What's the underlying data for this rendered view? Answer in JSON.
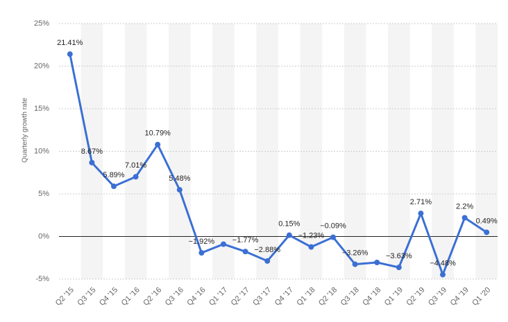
{
  "chart_data": {
    "type": "line",
    "y_label": "Quarterly growth rate",
    "categories": [
      "Q2 '15",
      "Q3 '15",
      "Q4 '15",
      "Q1 '16",
      "Q2 '16",
      "Q3 '16",
      "Q4 '16",
      "Q1 '17",
      "Q2 '17",
      "Q3 '17",
      "Q4 '17",
      "Q1 '18",
      "Q2 '18",
      "Q3 '18",
      "Q4 '18",
      "Q1 '19",
      "Q2 '19",
      "Q3 '19",
      "Q4 '19",
      "Q1 '20"
    ],
    "values": [
      21.41,
      8.67,
      5.89,
      7.01,
      10.79,
      5.48,
      -1.92,
      -0.9,
      -1.77,
      -2.88,
      0.15,
      -1.23,
      -0.09,
      -3.26,
      -3.05,
      -3.63,
      2.71,
      -4.48,
      2.2,
      0.49
    ],
    "value_labels": [
      "21.41%",
      "8.67%",
      "5.89%",
      "7.01%",
      "10.79%",
      "5.48%",
      "−1.92%",
      null,
      "−1.77%",
      "−2.88%",
      "0.15%",
      "−1.23%",
      "−0.09%",
      "−3.26%",
      null,
      "−3.63%",
      "2.71%",
      "−4.48%",
      "2.2%",
      "0.49%"
    ],
    "color": "#3b6fd4",
    "ylim": [
      -5,
      25
    ],
    "yticks": [
      {
        "value": -5,
        "label": "-5%"
      },
      {
        "value": 0,
        "label": "0%"
      },
      {
        "value": 5,
        "label": "5%"
      },
      {
        "value": 10,
        "label": "10%"
      },
      {
        "value": 15,
        "label": "15%"
      },
      {
        "value": 20,
        "label": "20%"
      },
      {
        "value": 25,
        "label": "25%"
      }
    ],
    "grid": true
  }
}
